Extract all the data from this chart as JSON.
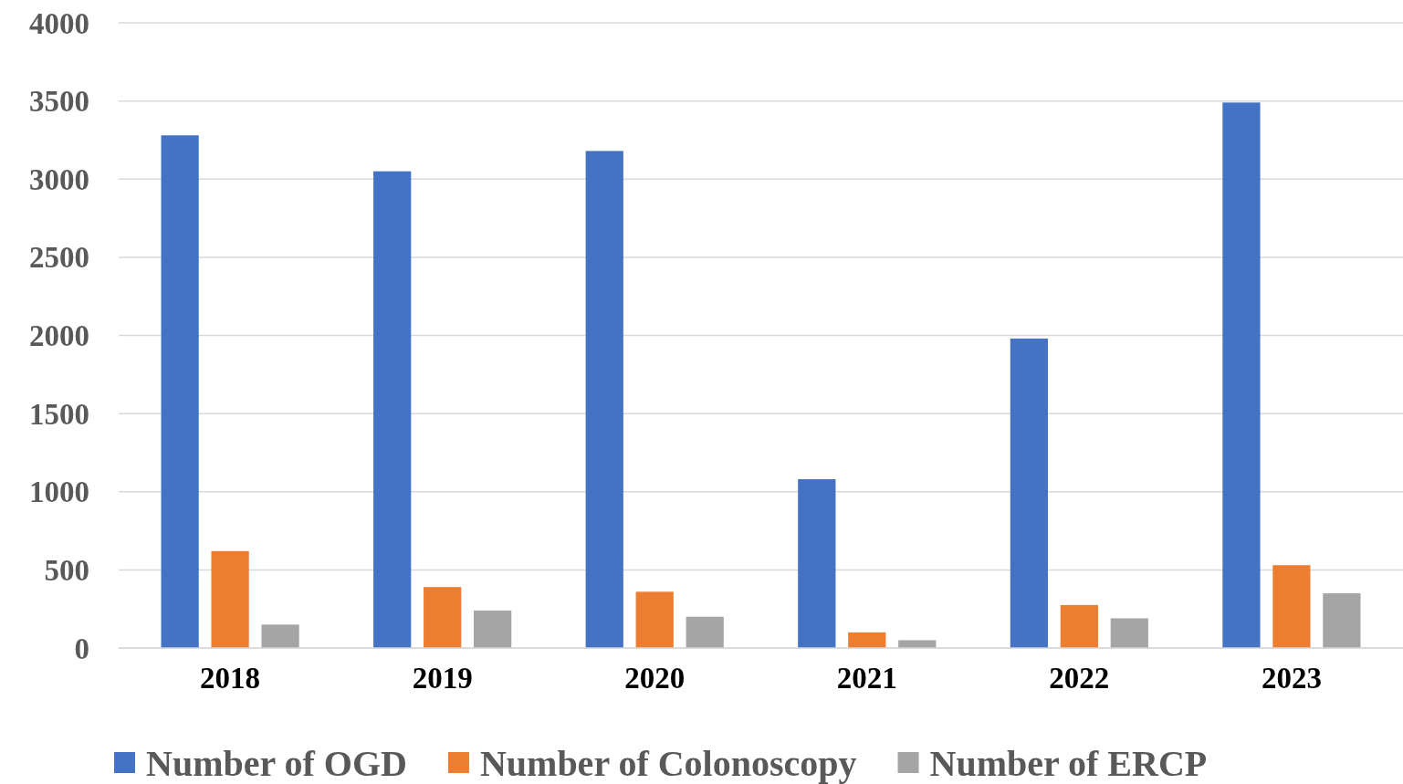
{
  "chart_data": {
    "type": "bar",
    "categories": [
      "2018",
      "2019",
      "2020",
      "2021",
      "2022",
      "2023"
    ],
    "series": [
      {
        "name": "Number of OGD",
        "color": "#4472c4",
        "values": [
          3280,
          3050,
          3180,
          1080,
          1980,
          3490
        ]
      },
      {
        "name": "Number of Colonoscopy",
        "color": "#ed7d31",
        "values": [
          620,
          390,
          360,
          100,
          275,
          530
        ]
      },
      {
        "name": "Number of ERCP",
        "color": "#a5a5a5",
        "values": [
          150,
          240,
          200,
          50,
          190,
          350
        ]
      }
    ],
    "ylim": [
      0,
      4000
    ],
    "yticks": [
      0,
      500,
      1000,
      1500,
      2000,
      2500,
      3000,
      3500,
      4000
    ],
    "grid": "y",
    "legend": "bottom"
  }
}
